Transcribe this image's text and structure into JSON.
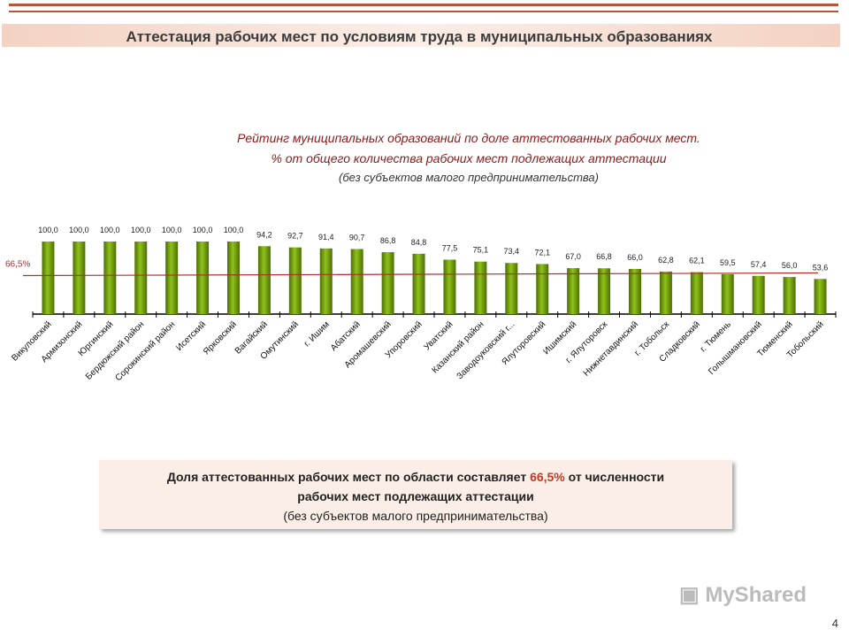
{
  "header": {
    "title": "Аттестация рабочих мест по условиям труда в муниципальных образованиях"
  },
  "chart_data": {
    "type": "bar",
    "title": "Рейтинг муниципальных образований по доле аттестованных рабочих мест.",
    "subtitle": "% от общего количества рабочих мест подлежащих аттестации",
    "subtitle2": "(без субъектов малого предпринимательства)",
    "categories": [
      "Викуловский",
      "Армизонский",
      "Юргинский",
      "Бердюжский район",
      "Сорокинский район",
      "Исетский",
      "Ярковский",
      "Вагайский",
      "Омутинский",
      "г. Ишим",
      "Абатский",
      "Аромашевский",
      "Упоровский",
      "Уватский",
      "Казанский район",
      "Заводоуковский г...",
      "Ялуторовский",
      "Ишимский",
      "г. Ялуторовск",
      "Нижнетавдинский",
      "г. Тобольск",
      "Сладковский",
      "г. Тюмень",
      "Голышмановский",
      "Тюменский",
      "Тобольский"
    ],
    "values": [
      100.0,
      100.0,
      100.0,
      100.0,
      100.0,
      100.0,
      100.0,
      94.2,
      92.7,
      91.4,
      90.7,
      86.8,
      84.8,
      77.5,
      75.1,
      73.4,
      72.1,
      67.0,
      66.8,
      66.0,
      62.8,
      62.1,
      59.5,
      57.4,
      56.0,
      53.6
    ],
    "value_labels": [
      "100,0",
      "100,0",
      "100,0",
      "100,0",
      "100,0",
      "100,0",
      "100,0",
      "94,2",
      "92,7",
      "91,4",
      "90,7",
      "86,8",
      "84,8",
      "77,5",
      "75,1",
      "73,4",
      "72,1",
      "67,0",
      "66,8",
      "66,0",
      "62,8",
      "62,1",
      "59,5",
      "57,4",
      "56,0",
      "53,6"
    ],
    "reference_line": {
      "value": 66.5,
      "label": "66,5%",
      "color": "#b03030"
    },
    "bar_color": "#6e9a0a",
    "ylim": [
      10,
      100
    ]
  },
  "note": {
    "line1_pre": "Доля аттестованных рабочих мест по  области составляет ",
    "line1_value": "66,5%",
    "line1_post": " от численности",
    "line2": "рабочих мест подлежащих аттестации",
    "line3": "(без субъектов малого предпринимательства)"
  },
  "logo": "MyShared",
  "page_number": "4"
}
